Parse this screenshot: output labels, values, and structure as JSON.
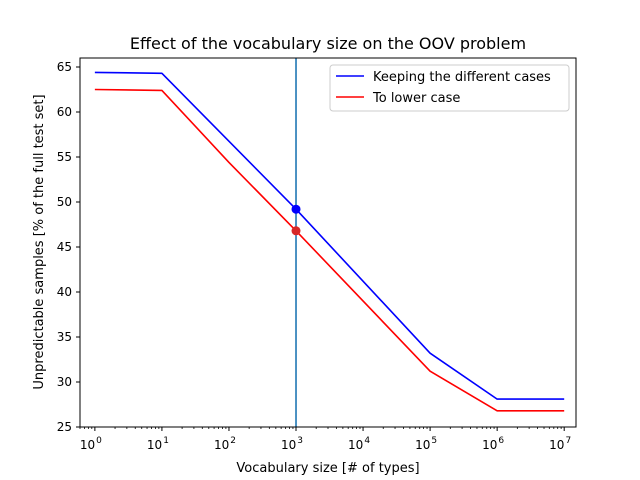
{
  "chart_data": {
    "type": "line",
    "title": "Effect of the vocabulary size on the OOV problem",
    "xlabel": "Vocabulary size [# of types]",
    "ylabel": "Unpredictable samples [% of the full test set]",
    "xscale": "log",
    "xlim": [
      0.6,
      15000000
    ],
    "ylim": [
      25,
      66
    ],
    "x": [
      1,
      10,
      100,
      1000,
      100000,
      1000000,
      10000000
    ],
    "x_ticks": [
      {
        "value": 1,
        "base": "10",
        "exp": "0"
      },
      {
        "value": 10,
        "base": "10",
        "exp": "1"
      },
      {
        "value": 100,
        "base": "10",
        "exp": "2"
      },
      {
        "value": 1000,
        "base": "10",
        "exp": "3"
      },
      {
        "value": 10000,
        "base": "10",
        "exp": "4"
      },
      {
        "value": 100000,
        "base": "10",
        "exp": "5"
      },
      {
        "value": 1000000,
        "base": "10",
        "exp": "6"
      },
      {
        "value": 10000000,
        "base": "10",
        "exp": "7"
      }
    ],
    "y_ticks": [
      "25",
      "30",
      "35",
      "40",
      "45",
      "50",
      "55",
      "60",
      "65"
    ],
    "series": [
      {
        "name": "Keeping the different cases",
        "color": "#0000ff",
        "values": [
          64.4,
          64.3,
          null,
          49.2,
          33.2,
          28.1,
          28.1
        ]
      },
      {
        "name": "To lower case",
        "color": "#ff0000",
        "values": [
          62.5,
          62.4,
          54.4,
          46.8,
          31.2,
          26.8,
          26.8
        ]
      }
    ],
    "markers": [
      {
        "x": 1000,
        "y": 49.2,
        "color": "#0000ff"
      },
      {
        "x": 1000,
        "y": 46.8,
        "color": "#d62728"
      }
    ],
    "vline": {
      "x": 1000,
      "color": "#1f77b4"
    },
    "grid": false,
    "legend": "top-right"
  }
}
